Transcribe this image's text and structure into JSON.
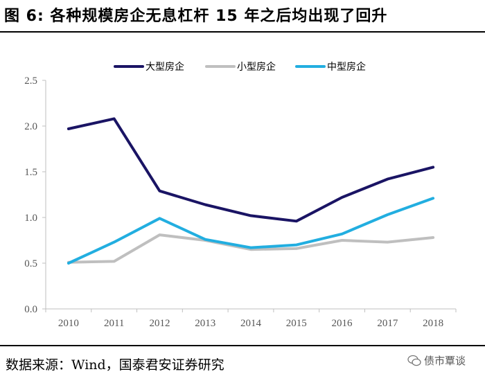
{
  "title": "图  6:  各种规模房企无息杠杆 15 年之后均出现了回升",
  "source": "数据来源：Wind，国泰君安证券研究",
  "watermark": "债市覃谈",
  "chart_data": {
    "type": "line",
    "categories": [
      "2010",
      "2011",
      "2012",
      "2013",
      "2014",
      "2015",
      "2016",
      "2017",
      "2018"
    ],
    "ylim": [
      0,
      2.5
    ],
    "yticks": [
      "0.0",
      "0.5",
      "1.0",
      "1.5",
      "2.0",
      "2.5"
    ],
    "grid": false,
    "legend_position": "top",
    "series": [
      {
        "name": "大型房企",
        "color": "#1a1464",
        "values": [
          1.97,
          2.08,
          1.29,
          1.14,
          1.02,
          0.96,
          1.22,
          1.42,
          1.55
        ]
      },
      {
        "name": "小型房企",
        "color": "#bfbfbf",
        "values": [
          0.51,
          0.52,
          0.81,
          0.75,
          0.65,
          0.66,
          0.75,
          0.73,
          0.78
        ]
      },
      {
        "name": "中型房企",
        "color": "#22aee0",
        "values": [
          0.5,
          0.73,
          0.99,
          0.76,
          0.67,
          0.7,
          0.82,
          1.03,
          1.21
        ]
      }
    ]
  }
}
